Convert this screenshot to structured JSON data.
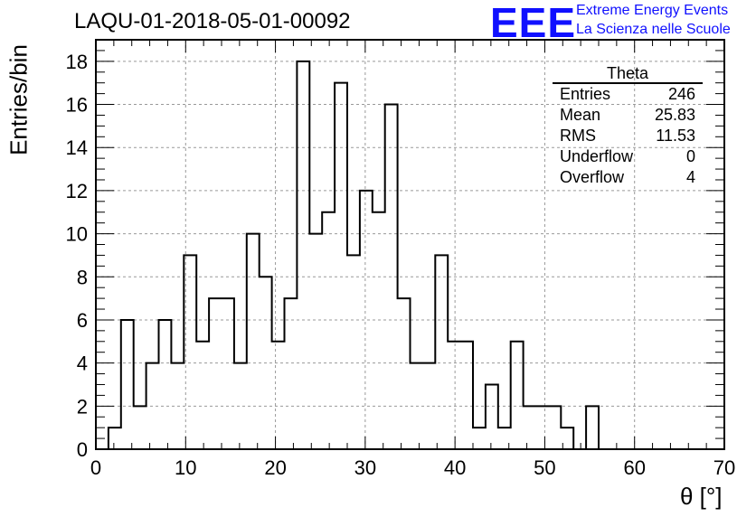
{
  "header": {
    "title": "LAQU-01-2018-05-01-00092",
    "logo_text": "EEE",
    "logo_line1": "Extreme Energy Events",
    "logo_line2": "La Scienza nelle Scuole"
  },
  "stats_box": {
    "title": "Theta",
    "rows": [
      {
        "label": "Entries",
        "value": "246"
      },
      {
        "label": "Mean",
        "value": "25.83"
      },
      {
        "label": "RMS",
        "value": "11.53"
      },
      {
        "label": "Underflow",
        "value": "0"
      },
      {
        "label": "Overflow",
        "value": "4"
      }
    ]
  },
  "colors": {
    "logo": "#1010ff",
    "line": "#000000",
    "grid": "#999999"
  },
  "chart_data": {
    "type": "bar",
    "style": "step-histogram",
    "xlabel": "θ [°]",
    "ylabel": "Entries/bin",
    "xlim": [
      0,
      70
    ],
    "ylim": [
      0,
      19
    ],
    "xticks": [
      0,
      10,
      20,
      30,
      40,
      50,
      60,
      70
    ],
    "yticks": [
      0,
      2,
      4,
      6,
      8,
      10,
      12,
      14,
      16,
      18
    ],
    "grid": true,
    "bin_width": 1.4,
    "bin_start": 0,
    "values": [
      0,
      1,
      6,
      2,
      4,
      6,
      4,
      9,
      5,
      7,
      7,
      4,
      10,
      8,
      5,
      7,
      18,
      10,
      11,
      17,
      9,
      12,
      11,
      16,
      7,
      4,
      4,
      9,
      5,
      5,
      1,
      3,
      1,
      5,
      2,
      2,
      2,
      1,
      0,
      2,
      0,
      0,
      0,
      0,
      0,
      0,
      0,
      0,
      0,
      0
    ]
  }
}
